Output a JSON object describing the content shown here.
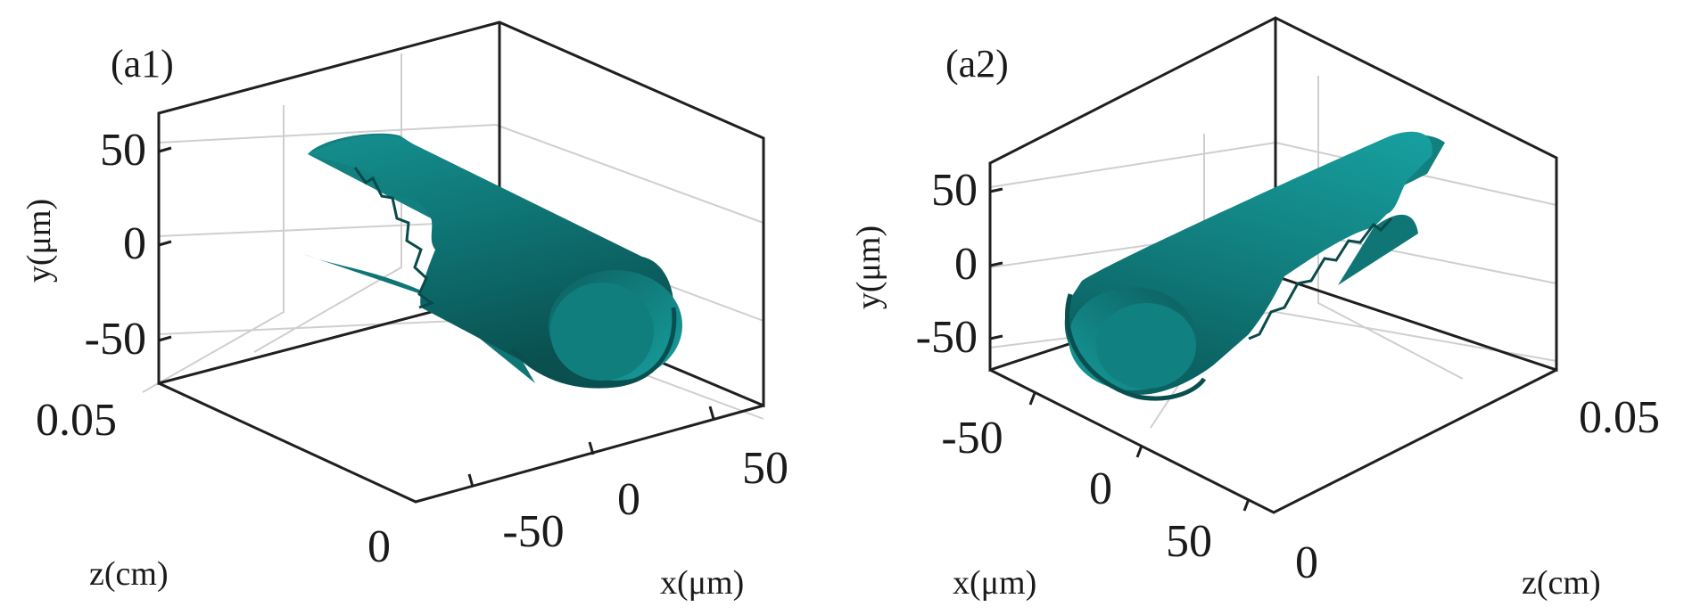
{
  "colors": {
    "surface": "#127f7f",
    "surface_dark": "#0b5a5a",
    "surface_light": "#1aa3a3",
    "axes": "#1f1f1f",
    "grid": "#cfcfcf"
  },
  "chart_data": [
    {
      "type": "surface3d",
      "panel_label": "(a1)",
      "xlabel": "x(μm)",
      "ylabel": "y(μm)",
      "zlabel": "z(cm)",
      "xticks": [
        "-50",
        "0",
        "50"
      ],
      "yticks": [
        "50",
        "0",
        "-50"
      ],
      "zticks": [
        "0.05",
        "0"
      ],
      "xlim": [
        -75,
        75
      ],
      "ylim": [
        -65,
        65
      ],
      "zlim": [
        0,
        0.05
      ],
      "grid": true,
      "surface": "split cylindrical shell (rolled tube) along z, radius ≈ 50 μm"
    },
    {
      "type": "surface3d",
      "panel_label": "(a2)",
      "xlabel": "x(μm)",
      "ylabel": "y(μm)",
      "zlabel": "z(cm)",
      "xticks": [
        "-50",
        "0",
        "50"
      ],
      "yticks": [
        "50",
        "0",
        "-50"
      ],
      "zticks": [
        "0.05",
        "0"
      ],
      "xlim": [
        -75,
        75
      ],
      "ylim": [
        -65,
        65
      ],
      "zlim": [
        0,
        0.05
      ],
      "grid": true,
      "surface": "split cylindrical shell (rolled tube) along z, radius ≈ 50 μm"
    }
  ]
}
